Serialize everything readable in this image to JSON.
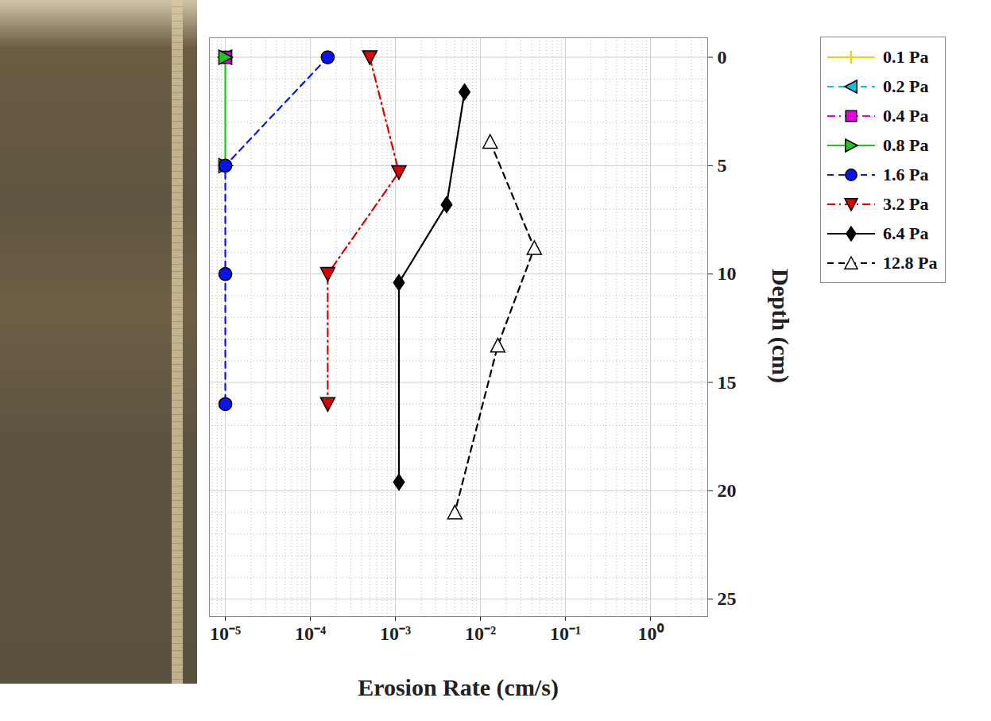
{
  "chart_data": {
    "type": "line",
    "x_label": "Erosion Rate (cm/s)",
    "y_label": "Depth (cm)",
    "log": "x",
    "grid": true,
    "legend": "right",
    "xlim": [
      6.5e-06,
      4.7
    ],
    "xticks": [
      {
        "value": 1e-05,
        "label": "10⁻⁵"
      },
      {
        "value": 0.0001,
        "label": "10⁻⁴"
      },
      {
        "value": 0.001,
        "label": "10⁻³"
      },
      {
        "value": 0.01,
        "label": "10⁻²"
      },
      {
        "value": 0.1,
        "label": "10⁻¹"
      },
      {
        "value": 1,
        "label": "10⁰"
      }
    ],
    "ylim": [
      25.8,
      -0.9
    ],
    "yticks": [
      0,
      5,
      10,
      15,
      20,
      25
    ],
    "series": [
      {
        "name": "0.1 Pa",
        "color": "#e8d800",
        "marker": "plus",
        "line_style": "solid",
        "x": [
          1e-05
        ],
        "y": [
          0
        ]
      },
      {
        "name": "0.2 Pa",
        "color": "#00c8d8",
        "marker": "triangle-left",
        "line_style": "dashed",
        "x": [
          1e-05
        ],
        "y": [
          0
        ]
      },
      {
        "name": "0.4 Pa",
        "color": "#e000e0",
        "marker": "square",
        "line_style": "dashdot",
        "x": [
          1e-05
        ],
        "y": [
          0
        ]
      },
      {
        "name": "0.8 Pa",
        "color": "#22c422",
        "marker": "triangle-right",
        "line_style": "solid",
        "x": [
          1e-05,
          1e-05
        ],
        "y": [
          0,
          5
        ]
      },
      {
        "name": "1.6 Pa",
        "color": "#0a14ee",
        "marker": "circle",
        "line_style": "dashed",
        "x": [
          0.00016,
          1e-05,
          1e-05,
          1e-05
        ],
        "y": [
          0,
          5,
          10,
          16
        ]
      },
      {
        "name": "3.2 Pa",
        "color": "#e00000",
        "marker": "triangle-down",
        "line_style": "dashdot",
        "x": [
          0.0005,
          0.0011,
          0.00016,
          0.00016
        ],
        "y": [
          0,
          5.3,
          10,
          16
        ]
      },
      {
        "name": "6.4 Pa",
        "color": "#000000",
        "marker": "diamond",
        "line_style": "solid",
        "x": [
          0.0065,
          0.004,
          0.0011,
          0.0011
        ],
        "y": [
          1.6,
          6.8,
          10.4,
          19.6
        ]
      },
      {
        "name": "12.8 Pa",
        "color": "#000000",
        "marker": "open-triangle-up",
        "line_style": "dashed",
        "x": [
          0.013,
          0.043,
          0.016,
          0.005
        ],
        "y": [
          3.9,
          8.8,
          13.3,
          21
        ]
      }
    ]
  }
}
